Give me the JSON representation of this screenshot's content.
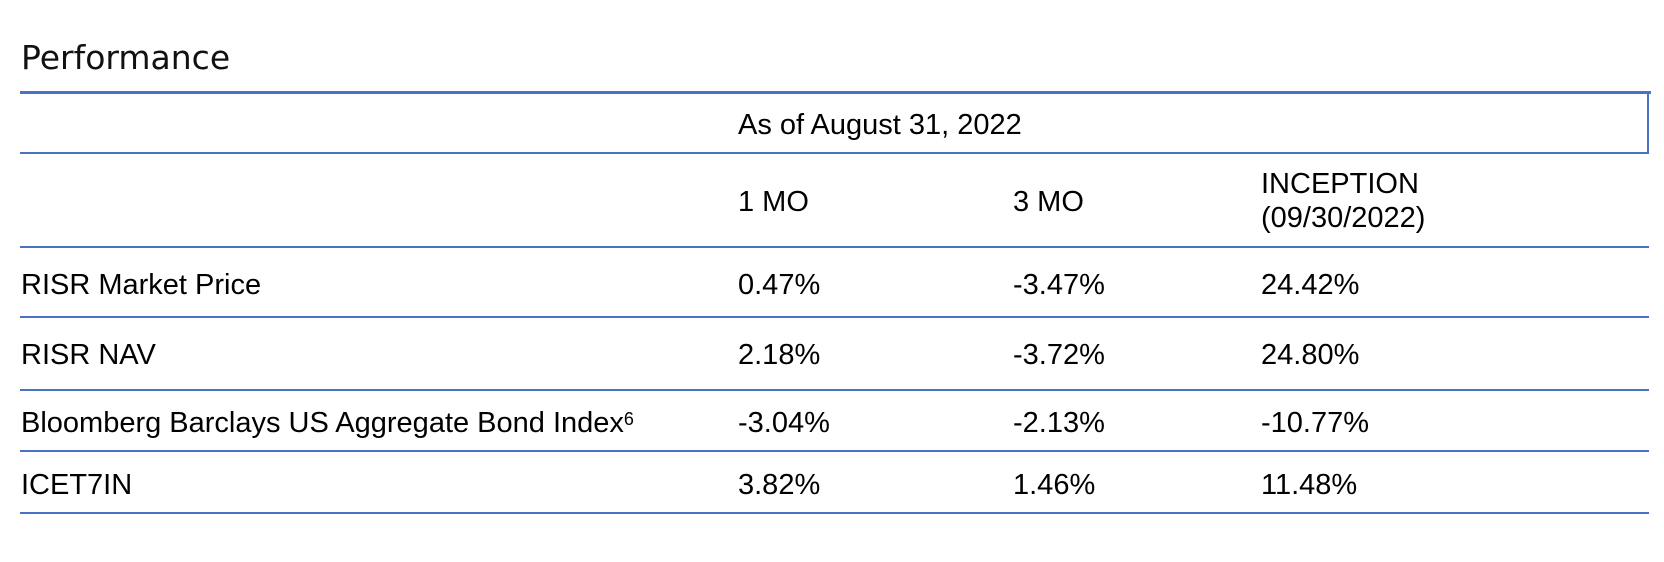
{
  "title": "Performance",
  "as_of": "As of August 31, 2022",
  "columns": {
    "col1": "1 MO",
    "col2": "3 MO",
    "col3_line1": "INCEPTION",
    "col3_line2": "(09/30/2022)"
  },
  "rows": [
    {
      "label": "RISR Market Price",
      "footnote": "",
      "one_mo": "0.47%",
      "three_mo": "-3.47%",
      "inception": "24.42%"
    },
    {
      "label": "RISR NAV",
      "footnote": "",
      "one_mo": "2.18%",
      "three_mo": "-3.72%",
      "inception": "24.80%"
    },
    {
      "label": "Bloomberg Barclays US Aggregate Bond Index",
      "footnote": "6",
      "one_mo": "-3.04%",
      "three_mo": "-2.13%",
      "inception": "-10.77%"
    },
    {
      "label": "ICET7IN",
      "footnote": "",
      "one_mo": "3.82%",
      "three_mo": "1.46%",
      "inception": "11.48%"
    }
  ],
  "colors": {
    "rule": "#4a72c2"
  }
}
